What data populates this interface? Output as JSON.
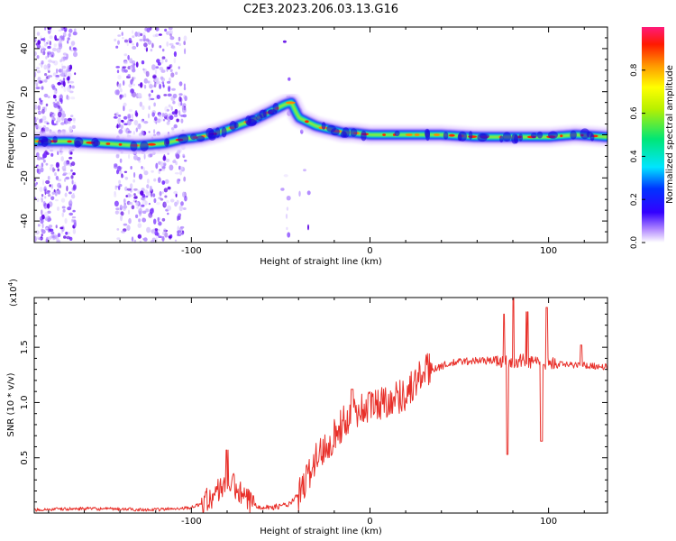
{
  "title": "C2E3.2023.206.03.13.G16",
  "chart_data": [
    {
      "type": "heatmap",
      "xlabel": "Height of straight line (km)",
      "ylabel": "Frequency (Hz)",
      "xlim": [
        -188,
        133
      ],
      "ylim": [
        -50,
        50
      ],
      "x_ticks": [
        -100,
        0,
        100
      ],
      "x_tick_labels": [
        "-100",
        "0",
        "100"
      ],
      "y_ticks": [
        -40,
        -20,
        0,
        20,
        40
      ],
      "y_tick_labels": [
        "-40",
        "-20",
        "0",
        "20",
        "40"
      ],
      "colorbar": {
        "label": "Normalized spectral amplitude",
        "range": [
          0,
          1
        ],
        "ticks": [
          0,
          0.2,
          0.4,
          0.6,
          0.8
        ],
        "tick_labels": [
          "0.0",
          "0.2",
          "0.4",
          "0.6",
          "0.8"
        ]
      },
      "ridge": {
        "x": [
          -188,
          -170,
          -150,
          -130,
          -115,
          -105,
          -95,
          -85,
          -75,
          -65,
          -55,
          -48,
          -44,
          -40,
          -35,
          -30,
          -25,
          -20,
          -15,
          -10,
          0,
          20,
          40,
          60,
          80,
          100,
          115,
          133
        ],
        "y": [
          -3,
          -3,
          -4,
          -5,
          -4,
          -2,
          -1,
          1,
          4,
          7,
          11,
          14,
          15,
          8,
          6,
          4,
          3,
          2,
          1,
          1,
          0,
          0,
          0,
          -1,
          -1,
          -1,
          0,
          -1
        ]
      },
      "grid": false
    },
    {
      "type": "line",
      "xlabel": "Height of straight line (km)",
      "ylabel": "SNR (10 * v/v)",
      "multiplier_label": "(x10",
      "multiplier_exp": "4",
      "multiplier_close": ")",
      "xlim": [
        -188,
        133
      ],
      "ylim": [
        0,
        1.95
      ],
      "x_ticks": [
        -100,
        0,
        100
      ],
      "x_tick_labels": [
        "-100",
        "0",
        "100"
      ],
      "y_ticks": [
        0.5,
        1.0,
        1.5
      ],
      "y_tick_labels": [
        "0.5",
        "1.0",
        "1.5"
      ],
      "series_color": "#e8302a",
      "envelope": {
        "x": [
          -188,
          -160,
          -120,
          -100,
          -92,
          -85,
          -80,
          -75,
          -70,
          -62,
          -55,
          -45,
          -38,
          -32,
          -25,
          -18,
          -10,
          0,
          10,
          20,
          25,
          30,
          40,
          50,
          60,
          70,
          75,
          80,
          85,
          90,
          95,
          100,
          110,
          120,
          133
        ],
        "y": [
          0.03,
          0.04,
          0.03,
          0.05,
          0.1,
          0.2,
          0.3,
          0.22,
          0.12,
          0.06,
          0.05,
          0.08,
          0.2,
          0.45,
          0.6,
          0.75,
          0.9,
          0.97,
          1.02,
          1.08,
          1.17,
          1.28,
          1.33,
          1.37,
          1.38,
          1.38,
          1.37,
          1.37,
          1.38,
          1.37,
          1.36,
          1.36,
          1.34,
          1.34,
          1.32
        ]
      },
      "features": [
        {
          "x": -80,
          "y": 0.57
        },
        {
          "x": -10,
          "y": 1.12
        },
        {
          "x": 75,
          "y": 1.8
        },
        {
          "x": 77,
          "y": 0.53
        },
        {
          "x": 80,
          "y": 2.0
        },
        {
          "x": 88,
          "y": 1.82
        },
        {
          "x": 96,
          "y": 0.65
        },
        {
          "x": 99,
          "y": 1.86
        },
        {
          "x": 118,
          "y": 1.52
        }
      ]
    }
  ]
}
